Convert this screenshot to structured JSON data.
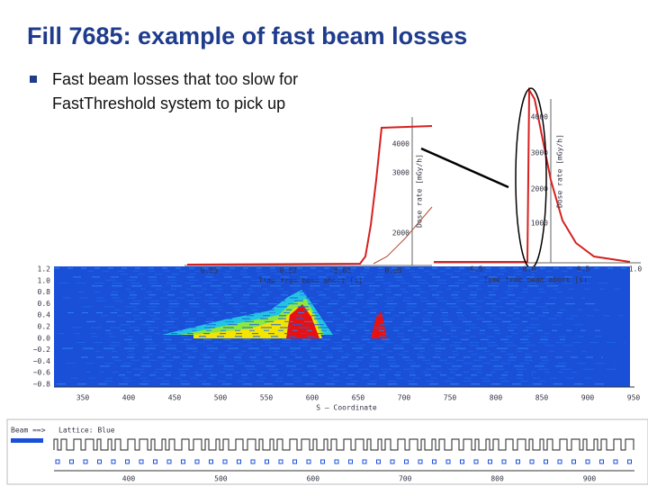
{
  "title": "Fill 7685: example of fast beam losses",
  "bullet": {
    "lines": [
      "Fast beam losses that too slow for",
      "FastThreshold system to pick up"
    ]
  },
  "zoom_plot": {
    "yticks": [
      "4000",
      "3000",
      "2000"
    ],
    "xticks": [
      "-0.03",
      "-0.02",
      "-0.01",
      "0.00"
    ],
    "xlabel": "Time from beam abort [s]",
    "ylabel": "Dose rate [mGy/h]"
  },
  "full_plot": {
    "yticks": [
      "4000",
      "3000",
      "2000",
      "1000"
    ],
    "xticks": [
      "-0.5",
      "0.0",
      "0.5",
      "1.0"
    ],
    "xlabel": "Time from beam abort [s]",
    "ylabel": "Dose rate [mGy/h]"
  },
  "heatmap": {
    "yticks": [
      "1.2",
      "1.0",
      "0.8",
      "0.6",
      "0.4",
      "0.2",
      "0.0",
      "−0.2",
      "−0.4",
      "−0.6",
      "−0.8"
    ],
    "xticks": [
      "350",
      "400",
      "450",
      "500",
      "550",
      "600",
      "650",
      "700",
      "750",
      "800",
      "850",
      "900",
      "950"
    ],
    "xlabel": "S — Coordinate"
  },
  "lattice": {
    "beam": "Beam ==>",
    "label": "Lattice: Blue",
    "xticks": [
      "400",
      "500",
      "600",
      "700",
      "800",
      "900"
    ]
  }
}
